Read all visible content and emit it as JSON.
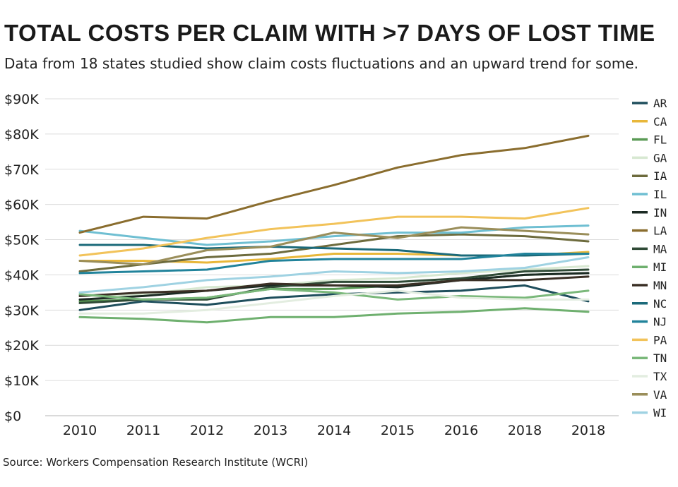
{
  "header": {
    "title": "TOTAL COSTS PER CLAIM WITH >7 DAYS OF LOST TIME",
    "subtitle": "Data from 18 states studied show claim costs fluctuations and an upward trend for some."
  },
  "footer": {
    "source": "Source: Workers Compensation Research Institute (WCRI)"
  },
  "chart_data": {
    "type": "line",
    "title": "TOTAL COSTS PER CLAIM WITH >7 DAYS OF LOST TIME",
    "subtitle": "Data from 18 states studied show claim costs fluctuations and an upward trend for some.",
    "categories": [
      "2010",
      "2011",
      "2012",
      "2013",
      "2014",
      "2015",
      "2016",
      "2018",
      "2018"
    ],
    "y_ticks": [
      "$0",
      "$10K",
      "$20K",
      "$30K",
      "$40K",
      "$50K",
      "$60K",
      "$70K",
      "$80K",
      "$90K"
    ],
    "ylim": [
      0,
      90000
    ],
    "grid": true,
    "legend": "right",
    "series": [
      {
        "name": "AR",
        "color": "#1e4e5c",
        "values": [
          30000,
          32500,
          31500,
          33500,
          34500,
          35000,
          35500,
          37000,
          32500
        ]
      },
      {
        "name": "CA",
        "color": "#e8b73a",
        "values": [
          44000,
          44000,
          43500,
          44500,
          46000,
          46000,
          45500,
          45500,
          46500
        ]
      },
      {
        "name": "FL",
        "color": "#5a9a55",
        "values": [
          32500,
          33000,
          33500,
          36000,
          36000,
          37000,
          38500,
          40000,
          40500
        ]
      },
      {
        "name": "GA",
        "color": "#d7e8d1",
        "values": [
          34000,
          34500,
          36500,
          37000,
          38500,
          39000,
          40500,
          41500,
          42500
        ]
      },
      {
        "name": "IA",
        "color": "#6d6b3d",
        "values": [
          41000,
          43000,
          45000,
          46000,
          48500,
          51000,
          51500,
          51000,
          49500
        ]
      },
      {
        "name": "IL",
        "color": "#6fbfd2",
        "values": [
          52500,
          50500,
          48500,
          49500,
          51000,
          52000,
          52000,
          53500,
          54000
        ]
      },
      {
        "name": "IN",
        "color": "#1b2a23",
        "values": [
          33000,
          34000,
          35500,
          37000,
          37000,
          36500,
          38500,
          40000,
          40500
        ]
      },
      {
        "name": "LA",
        "color": "#8a6d2e",
        "values": [
          52000,
          56500,
          56000,
          61000,
          65500,
          70500,
          74000,
          76000,
          79500
        ]
      },
      {
        "name": "MA",
        "color": "#2f4a36",
        "values": [
          32000,
          33000,
          33000,
          36500,
          38000,
          38000,
          39000,
          41000,
          41500
        ]
      },
      {
        "name": "MI",
        "color": "#6fb06f",
        "values": [
          28000,
          27500,
          26500,
          28000,
          28000,
          29000,
          29500,
          30500,
          29500
        ]
      },
      {
        "name": "MN",
        "color": "#3a2f25",
        "values": [
          34000,
          35000,
          35500,
          37500,
          37000,
          37000,
          38500,
          38500,
          39500
        ]
      },
      {
        "name": "NC",
        "color": "#1b6a7a",
        "values": [
          48500,
          48500,
          47500,
          48000,
          47500,
          47000,
          45500,
          45500,
          46000
        ]
      },
      {
        "name": "NJ",
        "color": "#21839b",
        "values": [
          40500,
          41000,
          41500,
          44000,
          44500,
          44500,
          44500,
          46000,
          46000
        ]
      },
      {
        "name": "PA",
        "color": "#f2c35a",
        "values": [
          45500,
          47500,
          50500,
          53000,
          54500,
          56500,
          56500,
          56000,
          59000
        ]
      },
      {
        "name": "TN",
        "color": "#7ab87a",
        "values": [
          34500,
          33000,
          33500,
          36000,
          35000,
          33000,
          34000,
          33500,
          35500
        ]
      },
      {
        "name": "TX",
        "color": "#e3ede0",
        "values": [
          29000,
          29000,
          30000,
          32000,
          34000,
          35500,
          33500,
          33000,
          33000
        ]
      },
      {
        "name": "VA",
        "color": "#9a8e5a",
        "values": [
          44000,
          43000,
          47000,
          48000,
          52000,
          50500,
          53500,
          52500,
          51500
        ]
      },
      {
        "name": "WI",
        "color": "#9fd2e2",
        "values": [
          35000,
          36500,
          38500,
          39500,
          41000,
          40500,
          41000,
          42000,
          45000
        ]
      }
    ]
  }
}
